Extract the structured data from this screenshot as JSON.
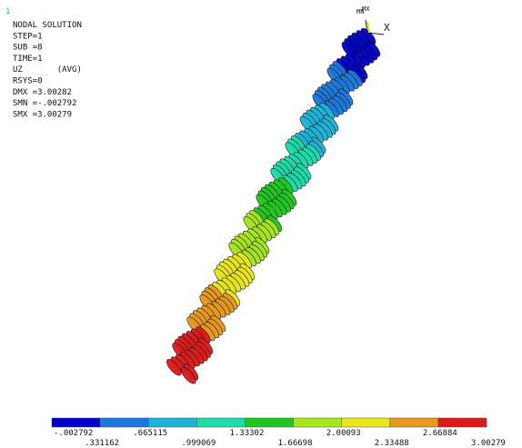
{
  "window_number": "1",
  "info": {
    "lines": [
      "NODAL SOLUTION",
      "STEP=1",
      "SUB =8",
      "TIME=1",
      "UZ       (AVG)",
      "RSYS=0",
      "DMX =3.00282",
      "SMN =-.002792",
      "SMX =3.00279"
    ]
  },
  "triad": {
    "mn": "MN",
    "mx": "MX",
    "x": "X"
  },
  "legend": {
    "labels": [
      "-.002792",
      ".331162",
      ".665115",
      ".999069",
      "1.33302",
      "1.66698",
      "2.00093",
      "2.33488",
      "2.66884",
      "3.00279"
    ],
    "colors": [
      "#0000c8",
      "#1a78dc",
      "#1ab4d8",
      "#1adcaa",
      "#1ec81e",
      "#a6e61a",
      "#e8e61a",
      "#e8981a",
      "#dc1a1a"
    ]
  }
}
